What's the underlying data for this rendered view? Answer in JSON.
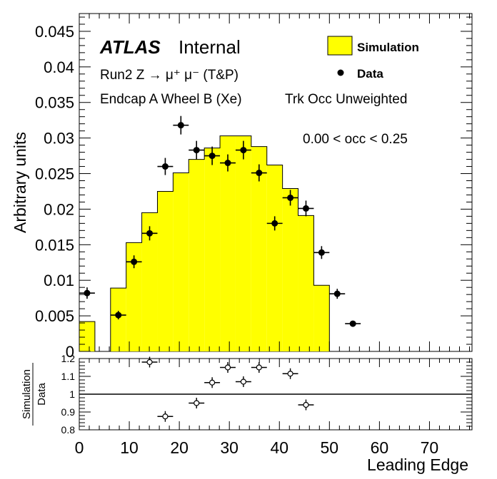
{
  "chart_data": [
    {
      "type": "histogram",
      "ylabel": "Arbitrary units",
      "xlim": [
        0,
        78.5
      ],
      "ylim": [
        0,
        0.0475
      ],
      "yticks": [
        "0",
        "0.005",
        "0.01",
        "0.015",
        "0.02",
        "0.025",
        "0.03",
        "0.035",
        "0.04",
        "0.045"
      ],
      "texts": {
        "atlas": "ATLAS",
        "internal": "Internal",
        "line1": "Run2 Z → μ⁺ μ⁻ (T&P)",
        "line2": "Endcap A Wheel B (Xe)",
        "line3": "Trk Occ Unweighted",
        "range": "0.00 < occ < 0.25"
      },
      "legend": {
        "placement": "top-right",
        "entries": [
          {
            "label": "Simulation",
            "style": "filled-box",
            "color": "#ffff00"
          },
          {
            "label": "Data",
            "style": "marker",
            "color": "#000000"
          }
        ]
      },
      "simulation": {
        "name": "Simulation",
        "color": "#ffff00",
        "bins": [
          {
            "lo": 0.0,
            "hi": 3.125,
            "y": 0.0042
          },
          {
            "lo": 3.125,
            "hi": 6.25,
            "y": 0.0
          },
          {
            "lo": 6.25,
            "hi": 9.375,
            "y": 0.0089
          },
          {
            "lo": 9.375,
            "hi": 12.5,
            "y": 0.0153
          },
          {
            "lo": 12.5,
            "hi": 15.625,
            "y": 0.0195
          },
          {
            "lo": 15.625,
            "hi": 18.75,
            "y": 0.0225
          },
          {
            "lo": 18.75,
            "hi": 21.875,
            "y": 0.0251
          },
          {
            "lo": 21.875,
            "hi": 25.0,
            "y": 0.027
          },
          {
            "lo": 25.0,
            "hi": 28.125,
            "y": 0.0286
          },
          {
            "lo": 28.125,
            "hi": 31.25,
            "y": 0.0303
          },
          {
            "lo": 31.25,
            "hi": 34.375,
            "y": 0.0303
          },
          {
            "lo": 34.375,
            "hi": 37.5,
            "y": 0.0288
          },
          {
            "lo": 37.5,
            "hi": 40.625,
            "y": 0.0262
          },
          {
            "lo": 40.625,
            "hi": 43.75,
            "y": 0.0229
          },
          {
            "lo": 43.75,
            "hi": 46.875,
            "y": 0.0191
          },
          {
            "lo": 46.875,
            "hi": 50.0,
            "y": 0.0093
          }
        ]
      },
      "data": {
        "name": "Data",
        "color": "#000000",
        "x_half_width": 1.5625,
        "points": [
          {
            "x": 1.5625,
            "y": 0.0082,
            "err": 0.0008
          },
          {
            "x": 7.8125,
            "y": 0.0051,
            "err": 0.0006
          },
          {
            "x": 10.9375,
            "y": 0.0126,
            "err": 0.0009
          },
          {
            "x": 14.0625,
            "y": 0.0166,
            "err": 0.001
          },
          {
            "x": 17.1875,
            "y": 0.026,
            "err": 0.0012
          },
          {
            "x": 20.3125,
            "y": 0.0318,
            "err": 0.0013
          },
          {
            "x": 23.4375,
            "y": 0.0283,
            "err": 0.0013
          },
          {
            "x": 26.5625,
            "y": 0.0275,
            "err": 0.0013
          },
          {
            "x": 29.6875,
            "y": 0.0265,
            "err": 0.0012
          },
          {
            "x": 32.8125,
            "y": 0.0283,
            "err": 0.0013
          },
          {
            "x": 35.9375,
            "y": 0.0251,
            "err": 0.0012
          },
          {
            "x": 39.0625,
            "y": 0.018,
            "err": 0.001
          },
          {
            "x": 42.1875,
            "y": 0.0216,
            "err": 0.0011
          },
          {
            "x": 45.3125,
            "y": 0.0201,
            "err": 0.0011
          },
          {
            "x": 48.4375,
            "y": 0.0139,
            "err": 0.0009
          },
          {
            "x": 51.5625,
            "y": 0.0081,
            "err": 0.0007
          },
          {
            "x": 54.6875,
            "y": 0.0039,
            "err": 0.0004
          }
        ]
      }
    },
    {
      "type": "scatter",
      "ylabel_numerator": "Simulation",
      "ylabel_denominator": "Data",
      "xlabel": "Leading Edge",
      "xlim": [
        0,
        78.5
      ],
      "ylim": [
        0.8,
        1.2
      ],
      "xticks": [
        "0",
        "10",
        "20",
        "30",
        "40",
        "50",
        "60",
        "70"
      ],
      "yticks": [
        "0.8",
        "0.9",
        "1",
        "1.1",
        "1.2"
      ],
      "reference_line": 1.0,
      "x_half_width": 1.5625,
      "points": [
        {
          "x": 14.0625,
          "y": 1.18,
          "err": 0.03
        },
        {
          "x": 17.1875,
          "y": 0.875,
          "err": 0.03
        },
        {
          "x": 23.4375,
          "y": 0.95,
          "err": 0.03
        },
        {
          "x": 26.5625,
          "y": 1.065,
          "err": 0.03
        },
        {
          "x": 29.6875,
          "y": 1.15,
          "err": 0.03
        },
        {
          "x": 32.8125,
          "y": 1.07,
          "err": 0.03
        },
        {
          "x": 35.9375,
          "y": 1.15,
          "err": 0.03
        },
        {
          "x": 42.1875,
          "y": 1.115,
          "err": 0.03
        },
        {
          "x": 45.3125,
          "y": 0.94,
          "err": 0.03
        }
      ]
    }
  ]
}
